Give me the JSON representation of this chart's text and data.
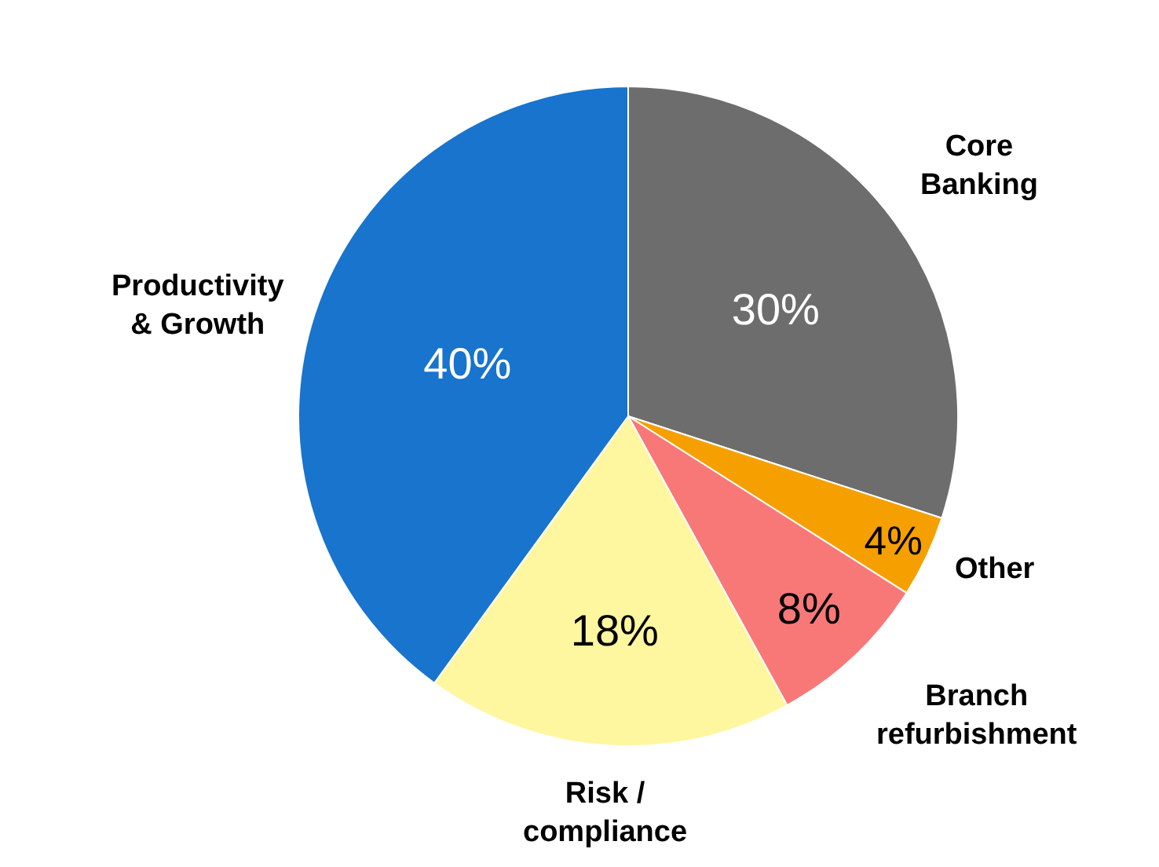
{
  "chart_data": {
    "type": "pie",
    "categories": [
      "Core Banking",
      "Other",
      "Branch refurbishment",
      "Risk / compliance",
      "Productivity & Growth"
    ],
    "values": [
      30,
      4,
      8,
      18,
      40
    ],
    "value_labels": [
      "30%",
      "4%",
      "8%",
      "18%",
      "40%"
    ],
    "colors": [
      "#6d6d6d",
      "#f5a000",
      "#f87878",
      "#fff6a0",
      "#1874cd"
    ],
    "legend": false
  }
}
